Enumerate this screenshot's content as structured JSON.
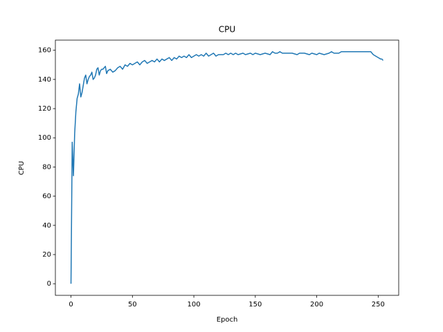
{
  "chart_data": {
    "type": "line",
    "title": "CPU",
    "x_label": "Epoch",
    "y_label": "CPU",
    "color": "#1f77b4",
    "x": [
      0,
      1,
      2,
      3,
      4,
      5,
      6,
      7,
      8,
      9,
      10,
      11,
      12,
      13,
      14,
      15,
      16,
      17,
      18,
      19,
      20,
      21,
      22,
      23,
      24,
      25,
      26,
      27,
      28,
      29,
      30,
      32,
      34,
      36,
      38,
      40,
      42,
      44,
      46,
      48,
      50,
      52,
      54,
      56,
      58,
      60,
      62,
      64,
      66,
      68,
      70,
      72,
      74,
      76,
      78,
      80,
      82,
      84,
      86,
      88,
      90,
      92,
      94,
      96,
      98,
      100,
      102,
      104,
      106,
      108,
      110,
      112,
      114,
      116,
      118,
      120,
      124,
      126,
      128,
      130,
      132,
      134,
      136,
      140,
      142,
      146,
      148,
      150,
      154,
      158,
      162,
      164,
      166,
      168,
      170,
      172,
      176,
      180,
      184,
      186,
      190,
      194,
      196,
      200,
      202,
      206,
      210,
      212,
      214,
      218,
      220,
      224,
      230,
      240,
      244,
      246,
      248,
      250,
      252,
      253,
      254
    ],
    "values": [
      0,
      97,
      74,
      103,
      118,
      127,
      130,
      137,
      128,
      131,
      136,
      141,
      143,
      137,
      140,
      142,
      143,
      145,
      140,
      141,
      143,
      147,
      148,
      143,
      146,
      147,
      147,
      148,
      149,
      144,
      146,
      147,
      145,
      146,
      148,
      149,
      147,
      150,
      149,
      151,
      150,
      151,
      152,
      150,
      152,
      153,
      151,
      152,
      153,
      152,
      154,
      152,
      154,
      153,
      154,
      155,
      153,
      155,
      154,
      156,
      155,
      156,
      155,
      157,
      155,
      156,
      157,
      156,
      157,
      156,
      158,
      156,
      157,
      158,
      156,
      157,
      157,
      158,
      157,
      158,
      157,
      158,
      157,
      158,
      157,
      158,
      157,
      158,
      157,
      158,
      157,
      159,
      158,
      158,
      159,
      158,
      158,
      158,
      157,
      158,
      158,
      157,
      158,
      157,
      158,
      157,
      158,
      159,
      158,
      158,
      159,
      159,
      159,
      159,
      159,
      157,
      156,
      155,
      154,
      154,
      153
    ],
    "xlim": [
      -12.7,
      266.7
    ],
    "ylim": [
      -7.95,
      166.95
    ],
    "xticks": [
      0,
      50,
      100,
      150,
      200,
      250
    ],
    "yticks": [
      0,
      20,
      40,
      60,
      80,
      100,
      120,
      140,
      160
    ]
  }
}
